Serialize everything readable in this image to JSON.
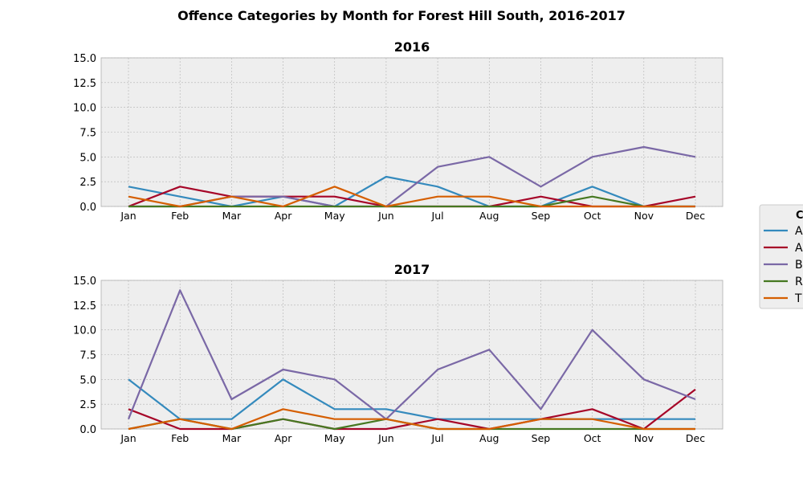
{
  "suptitle": "Offence Categories by Month for Forest Hill South, 2016-2017",
  "legend": {
    "title": "C",
    "entries": [
      "A:",
      "A",
      "B",
      "R",
      "T"
    ]
  },
  "chart_data": [
    {
      "type": "line",
      "title": "2016",
      "categories": [
        "Jan",
        "Feb",
        "Mar",
        "Apr",
        "May",
        "Jun",
        "Jul",
        "Aug",
        "Sep",
        "Oct",
        "Nov",
        "Dec"
      ],
      "yticks": [
        "0.0",
        "2.5",
        "5.0",
        "7.5",
        "10.0",
        "12.5",
        "15.0"
      ],
      "ylim": [
        0,
        15
      ],
      "grid": true,
      "series": [
        {
          "color": "#348abd",
          "values": [
            2,
            1,
            0,
            1,
            0,
            3,
            2,
            0,
            0,
            2,
            0,
            0
          ]
        },
        {
          "color": "#a60628",
          "values": [
            0,
            2,
            1,
            1,
            1,
            0,
            0,
            0,
            1,
            0,
            0,
            1
          ]
        },
        {
          "color": "#7a68a6",
          "values": [
            0,
            0,
            1,
            1,
            0,
            0,
            4,
            5,
            2,
            5,
            6,
            5
          ]
        },
        {
          "color": "#467821",
          "values": [
            0,
            0,
            0,
            0,
            0,
            0,
            0,
            0,
            0,
            1,
            0,
            0
          ]
        },
        {
          "color": "#d55e00",
          "values": [
            1,
            0,
            1,
            0,
            2,
            0,
            1,
            1,
            0,
            0,
            0,
            0
          ]
        }
      ]
    },
    {
      "type": "line",
      "title": "2017",
      "categories": [
        "Jan",
        "Feb",
        "Mar",
        "Apr",
        "May",
        "Jun",
        "Jul",
        "Aug",
        "Sep",
        "Oct",
        "Nov",
        "Dec"
      ],
      "yticks": [
        "0.0",
        "2.5",
        "5.0",
        "7.5",
        "10.0",
        "12.5",
        "15.0"
      ],
      "ylim": [
        0,
        15
      ],
      "grid": true,
      "series": [
        {
          "color": "#348abd",
          "values": [
            5,
            1,
            1,
            5,
            2,
            2,
            1,
            1,
            1,
            1,
            1,
            1
          ]
        },
        {
          "color": "#a60628",
          "values": [
            2,
            0,
            0,
            1,
            0,
            0,
            1,
            0,
            1,
            2,
            0,
            4
          ]
        },
        {
          "color": "#7a68a6",
          "values": [
            1,
            14,
            3,
            6,
            5,
            1,
            6,
            8,
            2,
            10,
            5,
            3
          ]
        },
        {
          "color": "#467821",
          "values": [
            0,
            1,
            0,
            1,
            0,
            1,
            0,
            0,
            0,
            0,
            0,
            0
          ]
        },
        {
          "color": "#d55e00",
          "values": [
            0,
            1,
            0,
            2,
            1,
            1,
            0,
            0,
            1,
            1,
            0,
            0
          ]
        }
      ]
    }
  ]
}
